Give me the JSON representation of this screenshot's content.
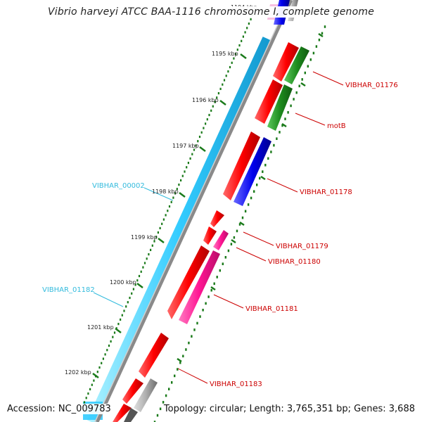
{
  "title": "Vibrio harveyi ATCC BAA-1116 chromosome I, complete genome",
  "accession": "Accession: NC_009783",
  "summary": "Topology: circular; Length: 3,765,351 bp; Genes: 3,688",
  "colors": {
    "forward_gene": "#ff0000",
    "cds_green": "#1e8c1e",
    "cds_blue": "#0000ee",
    "cds_pink": "#ff1493",
    "cds_gray": "#a0a0a0",
    "reverse_gene": "#33ccff",
    "backbone": "#808080",
    "tick": "#1a7a1a",
    "label_forward": "#cc0000",
    "label_reverse": "#33bbdd"
  },
  "kbp_ticks": [
    "1194 kbp",
    "1195 kbp",
    "1196 kbp",
    "1197 kbp",
    "1198 kbp",
    "1199 kbp",
    "1200 kbp",
    "1201 kbp",
    "1202 kbp"
  ],
  "gene_labels": [
    {
      "text": "VIBHAR_01176",
      "strand": "forward"
    },
    {
      "text": "motB",
      "strand": "forward"
    },
    {
      "text": "VIBHAR_01178",
      "strand": "forward"
    },
    {
      "text": "VIBHAR_01179",
      "strand": "forward"
    },
    {
      "text": "VIBHAR_01180",
      "strand": "forward"
    },
    {
      "text": "VIBHAR_01181",
      "strand": "forward"
    },
    {
      "text": "VIBHAR_01183",
      "strand": "forward"
    },
    {
      "text": "VIBHAR_00002",
      "strand": "reverse"
    },
    {
      "text": "VIBHAR_01182",
      "strand": "reverse"
    }
  ]
}
